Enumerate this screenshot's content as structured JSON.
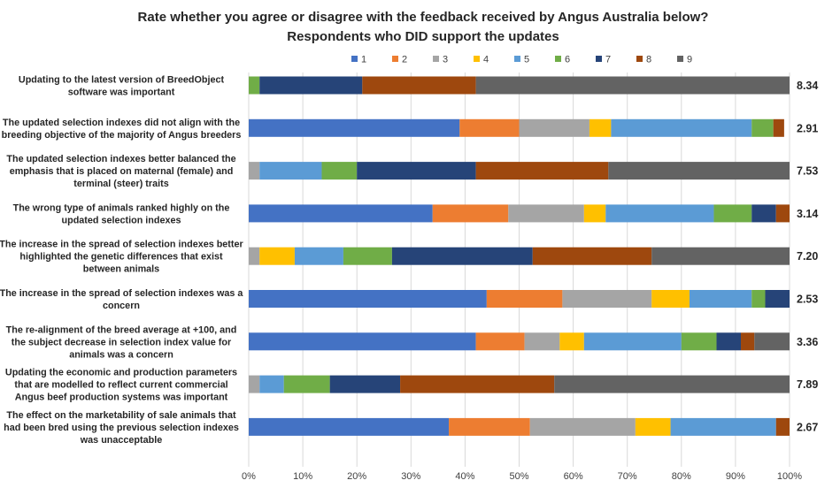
{
  "chart_data": {
    "type": "bar",
    "stacked": "percent",
    "orientation": "horizontal",
    "title": "Rate whether you agree or disagree with the feedback received by Angus Australia below?",
    "subtitle": "Respondents who DID support the updates",
    "legend_position": "top",
    "series_names": [
      "1",
      "2",
      "3",
      "4",
      "5",
      "6",
      "7",
      "8",
      "9"
    ],
    "colors": [
      "#4472C4",
      "#ED7D31",
      "#A5A5A5",
      "#FFC000",
      "#5B9BD5",
      "#70AD47",
      "#264478",
      "#9E480E",
      "#636363"
    ],
    "x_ticks": [
      "0%",
      "10%",
      "20%",
      "30%",
      "40%",
      "50%",
      "60%",
      "70%",
      "80%",
      "90%",
      "100%"
    ],
    "xlim": [
      0,
      100
    ],
    "grid": true,
    "rows": [
      {
        "label": [
          "Updating to the latest version of BreedObject",
          "software was important"
        ],
        "values": [
          0,
          0,
          0,
          0,
          0,
          2,
          19,
          21,
          58
        ],
        "average": "8.34"
      },
      {
        "label": [
          "The updated selection indexes did not align with the",
          "breeding objective of the majority of Angus breeders"
        ],
        "values": [
          39,
          11,
          13,
          4,
          26,
          4,
          0,
          2,
          0
        ],
        "average": "2.91"
      },
      {
        "label": [
          "The updated selection indexes better balanced the",
          "emphasis that is placed on maternal (female) and",
          "terminal (steer) traits"
        ],
        "values": [
          0,
          0,
          2,
          0,
          11.5,
          6.5,
          22,
          24.5,
          33.5
        ],
        "average": "7.53"
      },
      {
        "label": [
          "The wrong type of animals ranked highly on the",
          "updated selection indexes"
        ],
        "values": [
          34,
          14,
          14,
          4,
          20,
          7,
          4.5,
          2.5,
          0
        ],
        "average": "3.14"
      },
      {
        "label": [
          "The increase in the spread of selection indexes better",
          "highlighted the genetic differences that exist",
          "between animals"
        ],
        "values": [
          0,
          0,
          2,
          6.5,
          9,
          9,
          26,
          22,
          25.5
        ],
        "average": "7.20"
      },
      {
        "label": [
          "The increase in the spread of selection indexes was a",
          "concern"
        ],
        "values": [
          44,
          14,
          16.5,
          7,
          11.5,
          2.5,
          4.5,
          0,
          0
        ],
        "average": "2.53"
      },
      {
        "label": [
          "The re-alignment of the breed average at +100, and",
          "the subject decrease in selection index value for",
          "animals was a concern"
        ],
        "values": [
          42,
          9,
          6.5,
          4.5,
          18,
          6.5,
          4.5,
          2.5,
          6.5
        ],
        "average": "3.36"
      },
      {
        "label": [
          "Updating the economic and production parameters",
          "that are modelled to reflect current commercial",
          "Angus beef production systems was important"
        ],
        "values": [
          0,
          0,
          2,
          0,
          4.5,
          8.5,
          13,
          28.5,
          43.5
        ],
        "average": "7.89"
      },
      {
        "label": [
          "The effect on the marketability of sale animals that",
          "had been bred using the previous selection indexes",
          "was unacceptable"
        ],
        "values": [
          37,
          15,
          19.5,
          6.5,
          19.5,
          0,
          0,
          2.5,
          0
        ],
        "average": "2.67"
      }
    ]
  }
}
